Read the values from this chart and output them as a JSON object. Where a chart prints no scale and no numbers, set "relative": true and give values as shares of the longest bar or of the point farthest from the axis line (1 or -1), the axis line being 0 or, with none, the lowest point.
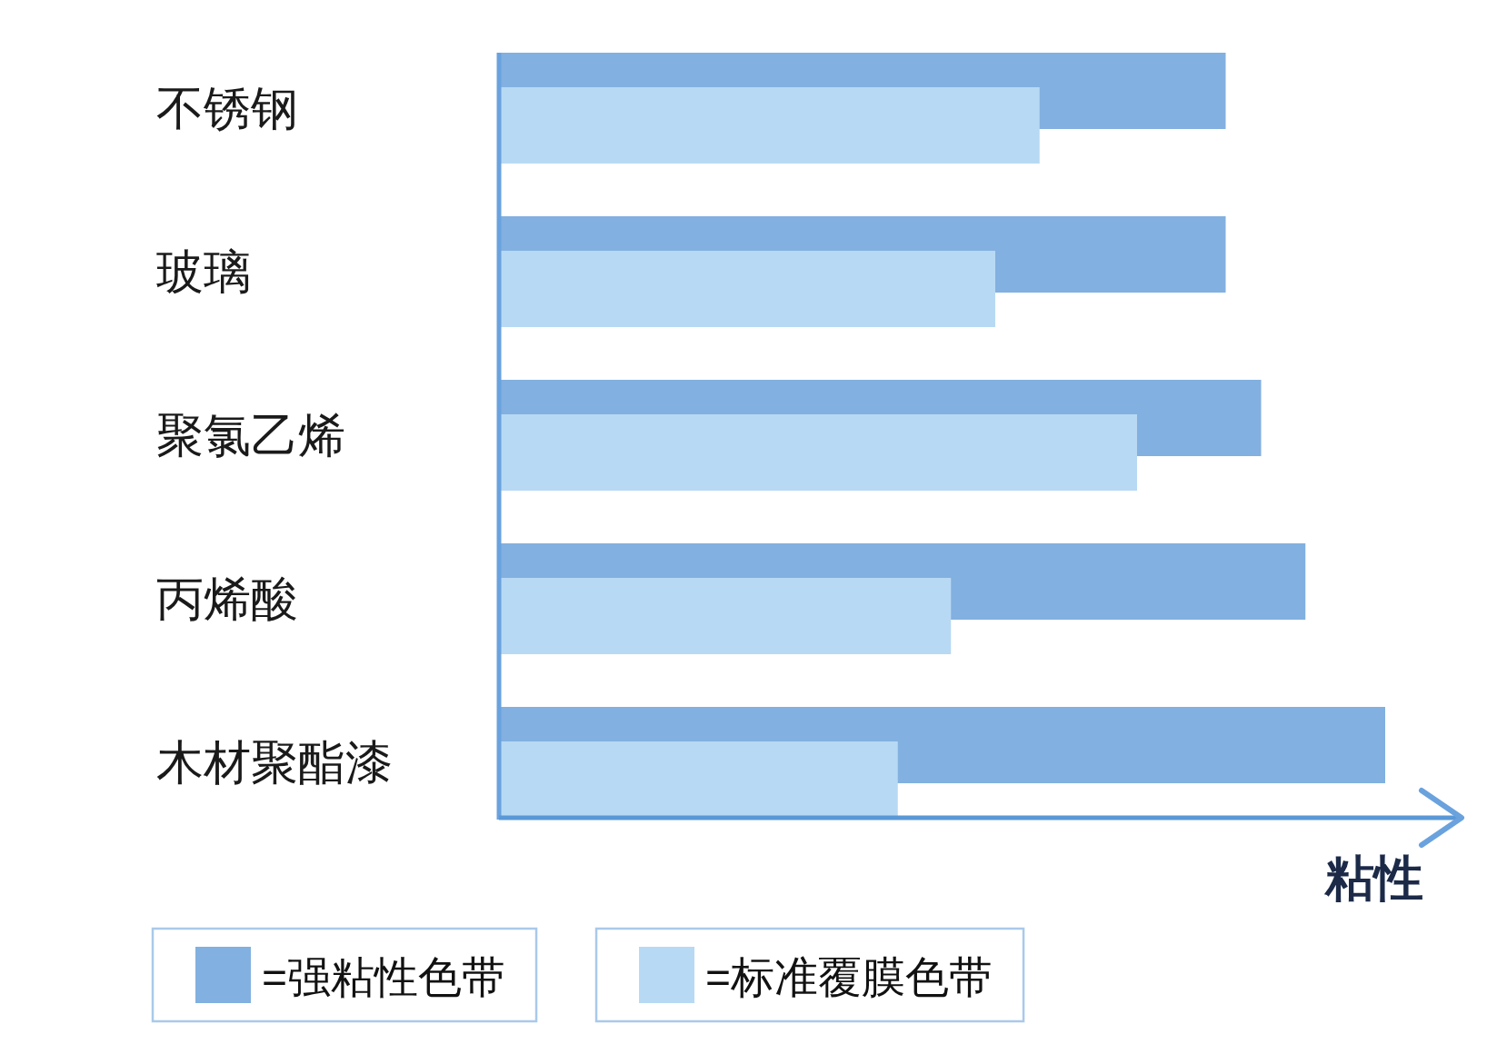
{
  "chart_data": {
    "type": "bar",
    "orientation": "horizontal",
    "relative": true,
    "xlabel": "粘性",
    "categories": [
      "不锈钢",
      "玻璃",
      "聚氯乙烯",
      "丙烯酸",
      "木材聚酯漆"
    ],
    "series": [
      {
        "name": "=强粘性色带",
        "color": "#82b0e0",
        "values": [
          0.82,
          0.82,
          0.86,
          0.91,
          1
        ]
      },
      {
        "name": "=标准覆膜色带",
        "color": "#b8d9f3",
        "values": [
          0.61,
          0.56,
          0.72,
          0.51,
          0.45
        ]
      }
    ],
    "legend": "bottom"
  }
}
